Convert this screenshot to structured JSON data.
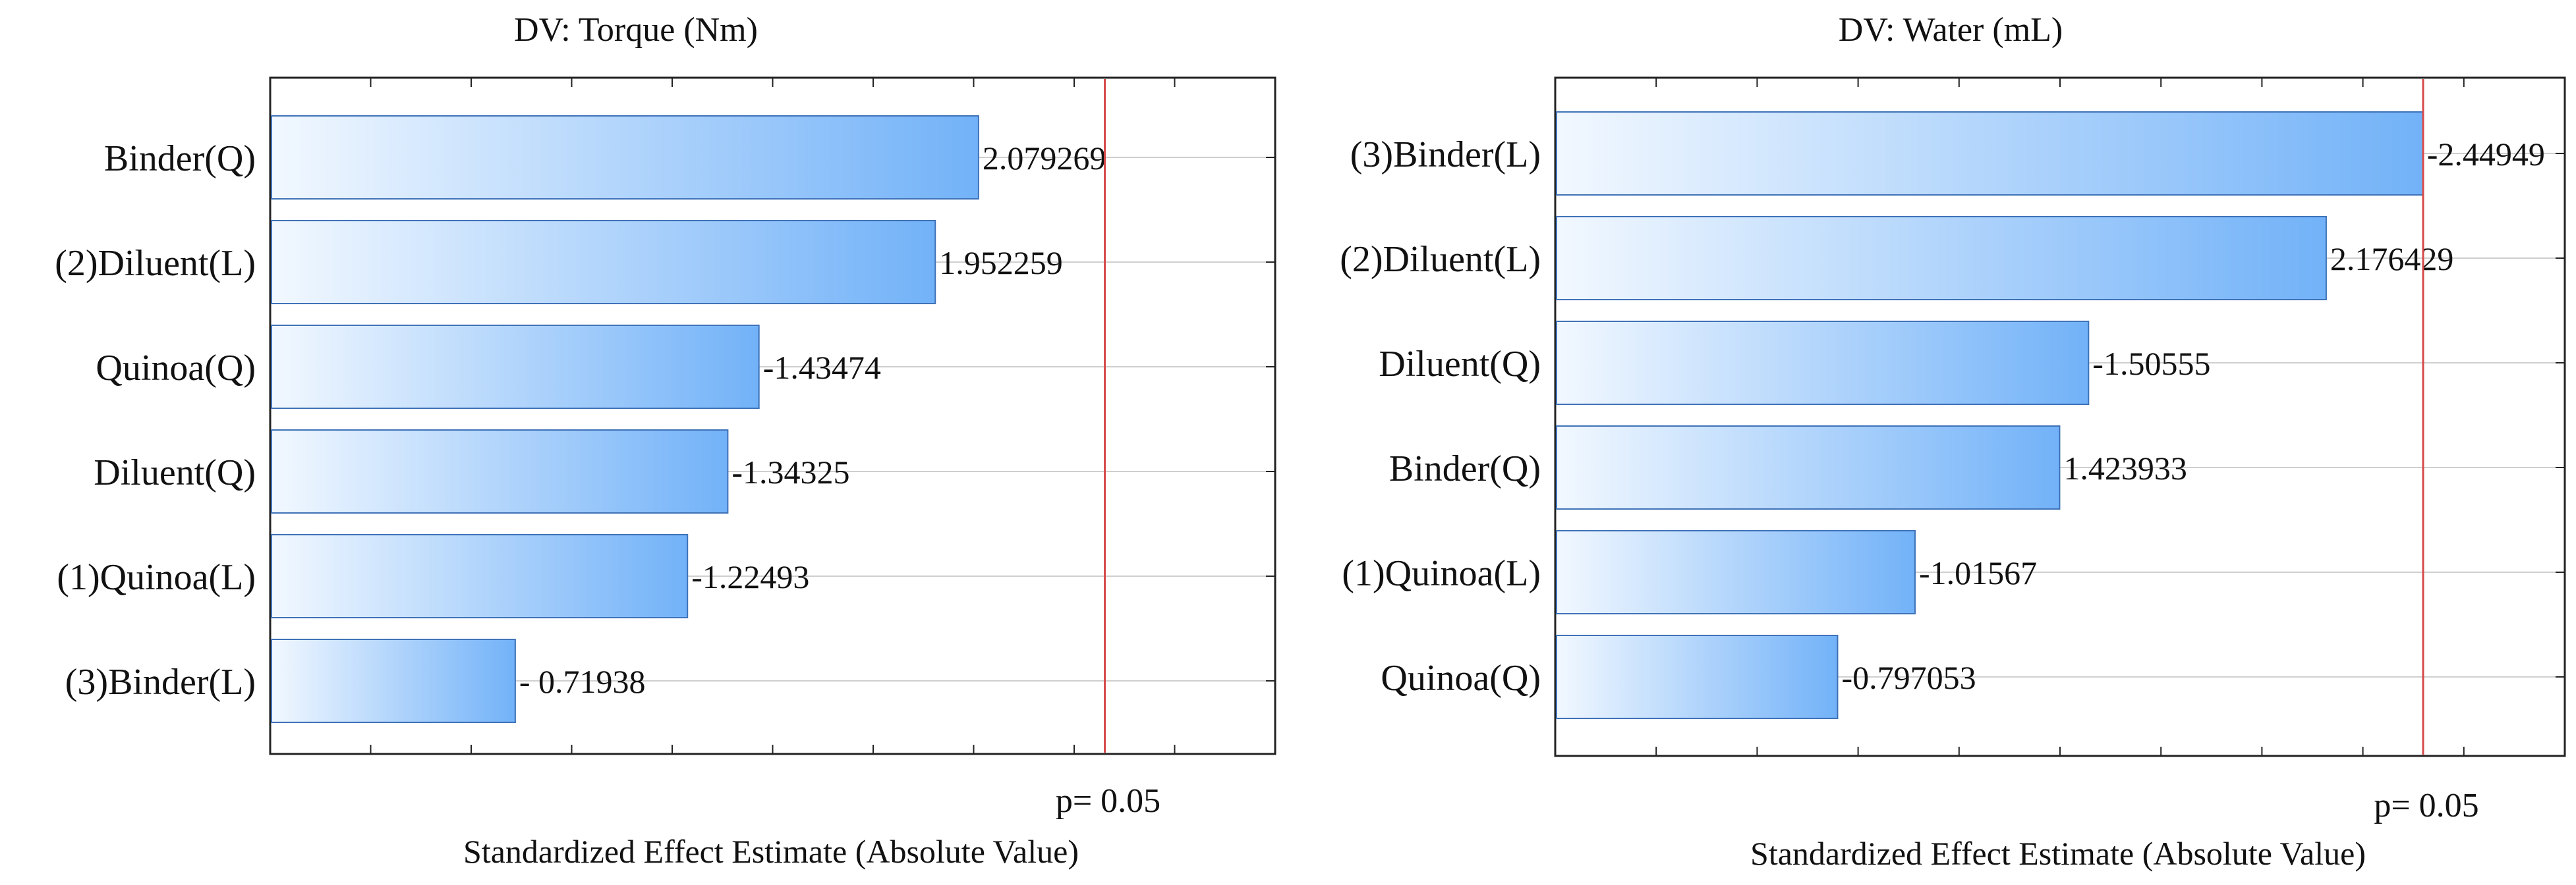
{
  "chart_data": [
    {
      "type": "bar",
      "orientation": "horizontal",
      "title": "DV: Torque (Nm)",
      "xlabel": "Standardized Effect Estimate (Absolute Value)",
      "ylabel": "",
      "reference_line": {
        "value": 2.45,
        "label": "p= 0.05",
        "color": "#d84a4a"
      },
      "xlim": [
        0,
        2.95
      ],
      "grid": true,
      "legend": "none",
      "categories": [
        "Binder(Q)",
        "(2)Diluent(L)",
        "Quinoa(Q)",
        "Diluent(Q)",
        "(1)Quinoa(L)",
        "(3)Binder(L)"
      ],
      "values": [
        2.079269,
        1.952259,
        1.43474,
        1.34325,
        1.22493,
        0.71938
      ],
      "value_labels": [
        "2.079269",
        "1.952259",
        "-1.43474",
        "-1.34325",
        "-1.22493",
        "- 0.71938"
      ]
    },
    {
      "type": "bar",
      "orientation": "horizontal",
      "title": "DV: Water (mL)",
      "xlabel": "Standardized Effect Estimate (Absolute Value)",
      "ylabel": "",
      "reference_line": {
        "value": 2.45,
        "label": "p= 0.05",
        "color": "#d84a4a"
      },
      "xlim": [
        0,
        2.85
      ],
      "grid": true,
      "legend": "none",
      "categories": [
        "(3)Binder(L)",
        "(2)Diluent(L)",
        "Diluent(Q)",
        "Binder(Q)",
        "(1)Quinoa(L)",
        "Quinoa(Q)"
      ],
      "values": [
        2.44949,
        2.176429,
        1.50555,
        1.423933,
        1.01567,
        0.797053
      ],
      "value_labels": [
        "-2.44949",
        "2.176429",
        "-1.50555",
        "1.423933",
        "-1.01567",
        "-0.797053"
      ]
    }
  ],
  "colors": {
    "bar_light": "#f2f8ff",
    "bar_dark": "#72b2f8",
    "bar_stroke": "#3f72b8",
    "axis": "#222222",
    "grid": "#cfcfcf",
    "reference": "#d84a4a"
  }
}
